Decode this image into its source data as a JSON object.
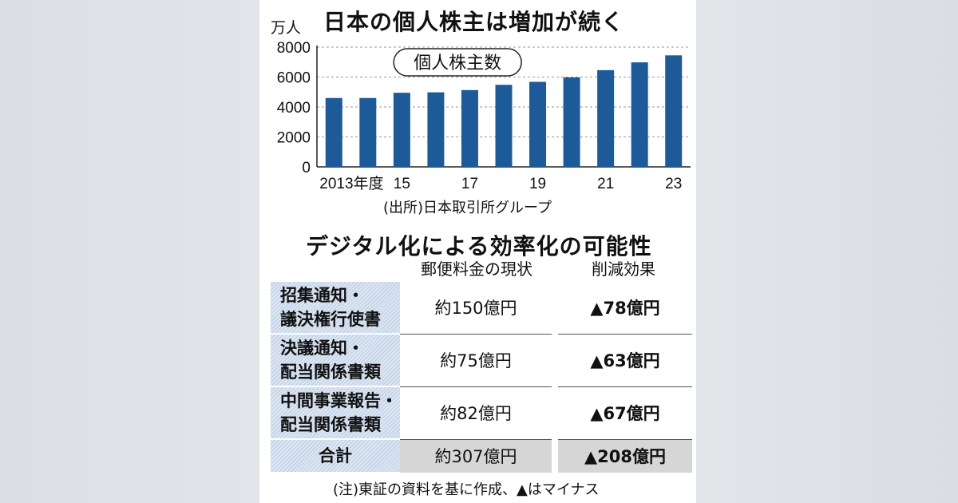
{
  "chart_data": {
    "type": "bar",
    "title": "日本の個人株主は増加が続く",
    "unit": "万人",
    "series_label": "個人株主数",
    "categories": [
      "2013",
      "2014",
      "2015",
      "2016",
      "2017",
      "2018",
      "2019",
      "2020",
      "2021",
      "2022",
      "2023"
    ],
    "tick_labels": [
      {
        "category": "2013",
        "label": "2013年度"
      },
      {
        "category": "2015",
        "label": "15"
      },
      {
        "category": "2017",
        "label": "17"
      },
      {
        "category": "2019",
        "label": "19"
      },
      {
        "category": "2021",
        "label": "21"
      },
      {
        "category": "2023",
        "label": "23"
      }
    ],
    "values": [
      4600,
      4600,
      4950,
      4980,
      5130,
      5480,
      5680,
      5980,
      6460,
      6980,
      7450
    ],
    "yticks": [
      "0",
      "2000",
      "4000",
      "6000",
      "8000"
    ],
    "ylim": [
      0,
      8000
    ],
    "bar_color": "#1c5a9a",
    "grid": true,
    "source": "(出所)日本取引所グループ"
  },
  "table": {
    "title": "デジタル化による効率化の可能性",
    "col_current": "郵便料金の現状",
    "col_reduction": "削減効果",
    "rows": [
      {
        "label1": "招集通知・",
        "label2": "議決権行使書",
        "current": "約150億円",
        "reduction": "▲78億円"
      },
      {
        "label1": "決議通知・",
        "label2": "配当関係書類",
        "current": "約75億円",
        "reduction": "▲63億円"
      },
      {
        "label1": "中間事業報告・",
        "label2": "配当関係書類",
        "current": "約82億円",
        "reduction": "▲67億円"
      }
    ],
    "total": {
      "label": "合計",
      "current": "約307億円",
      "reduction": "▲208億円"
    },
    "note": "(注)東証の資料を基に作成、▲はマイナス"
  }
}
